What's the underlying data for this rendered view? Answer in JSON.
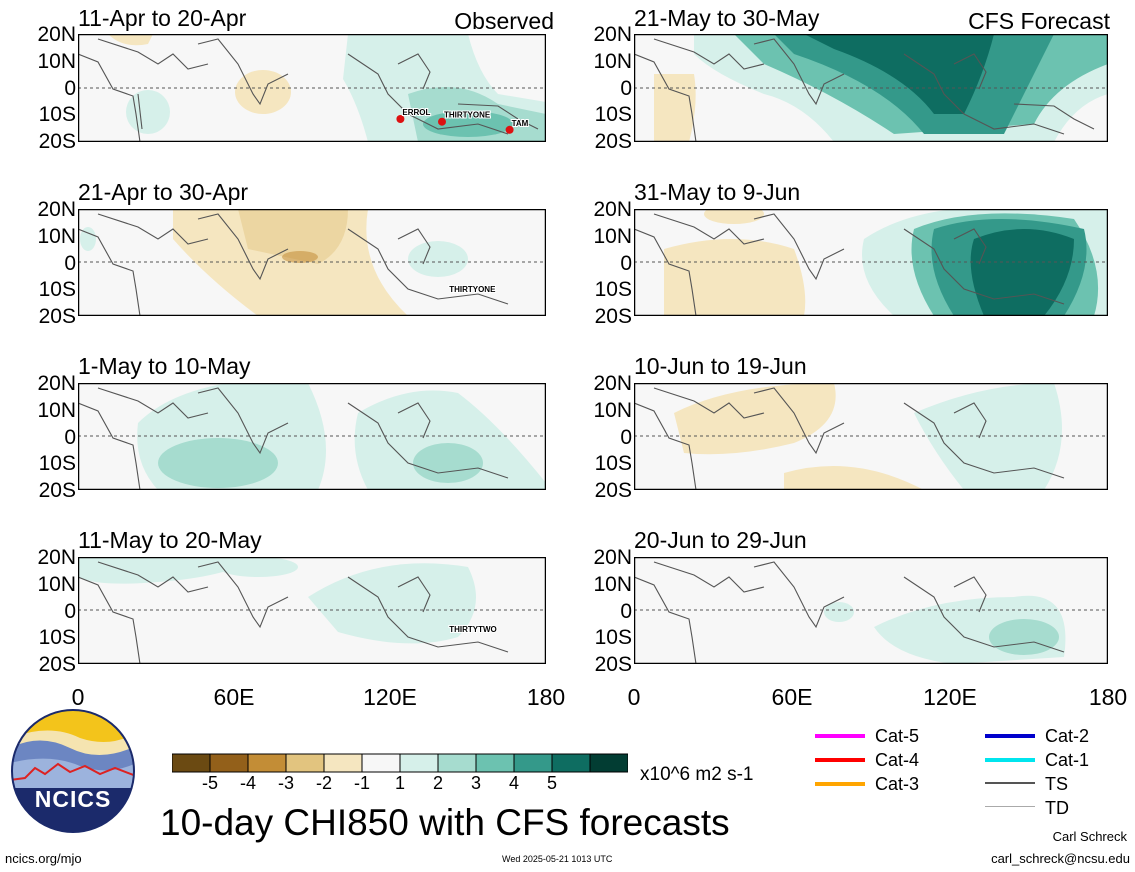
{
  "panels": [
    {
      "id": "p1",
      "title": "11-Apr to 20-Apr",
      "tag": "Observed",
      "storms": [
        {
          "name": "ERROL",
          "lon": 124,
          "lat": -10
        },
        {
          "name": "THIRTYONE",
          "lon": 140,
          "lat": -11
        },
        {
          "name": "TAM",
          "lon": 166,
          "lat": -14
        }
      ]
    },
    {
      "id": "p2",
      "title": "21-Apr to 30-Apr",
      "tag": "",
      "storms": [
        {
          "name": "THIRTYONE",
          "lon": 142,
          "lat": -11
        }
      ]
    },
    {
      "id": "p3",
      "title": "1-May to 10-May",
      "tag": "",
      "storms": []
    },
    {
      "id": "p4",
      "title": "11-May to 20-May",
      "tag": "",
      "storms": [
        {
          "name": "THIRTYTWO",
          "lon": 142,
          "lat": -8
        }
      ]
    },
    {
      "id": "p5",
      "title": "21-May to 30-May",
      "tag": "CFS Forecast",
      "storms": []
    },
    {
      "id": "p6",
      "title": "31-May to 9-Jun",
      "tag": "",
      "storms": []
    },
    {
      "id": "p7",
      "title": "10-Jun to 19-Jun",
      "tag": "",
      "storms": []
    },
    {
      "id": "p8",
      "title": "20-Jun to 29-Jun",
      "tag": "",
      "storms": []
    }
  ],
  "lat_ticks": [
    "20N",
    "10N",
    "0",
    "10S",
    "20S"
  ],
  "lon_ticks": [
    "0",
    "60E",
    "120E",
    "180"
  ],
  "colorbar": {
    "colors": [
      "#6b4a12",
      "#93601a",
      "#c38d36",
      "#e2c47f",
      "#f5e6c0",
      "#f7f7f7",
      "#d6f0ea",
      "#a6dccf",
      "#6cc2b0",
      "#34998a",
      "#0e6d61",
      "#023d33"
    ],
    "labels": [
      "-5",
      "-4",
      "-3",
      "-2",
      "-1",
      "1",
      "2",
      "3",
      "4",
      "5"
    ],
    "units": "x10^6 m2 s-1"
  },
  "legend": [
    {
      "label": "Cat-5",
      "color": "#ff00ff"
    },
    {
      "label": "Cat-4",
      "color": "#ff0000"
    },
    {
      "label": "Cat-3",
      "color": "#ffa500"
    },
    {
      "label": "Cat-2",
      "color": "#0000cc"
    },
    {
      "label": "Cat-1",
      "color": "#00e5ee"
    },
    {
      "label": "TS",
      "color": "#555555"
    },
    {
      "label": "TD",
      "color": "#aaaaaa"
    }
  ],
  "main_title": "10-day CHI850 with CFS forecasts",
  "logo_text": "NCICS",
  "website": "ncics.org/mjo",
  "timestamp": "Wed 2025-05-21 1013 UTC",
  "author": "Carl Schreck",
  "email": "carl_schreck@ncsu.edu"
}
